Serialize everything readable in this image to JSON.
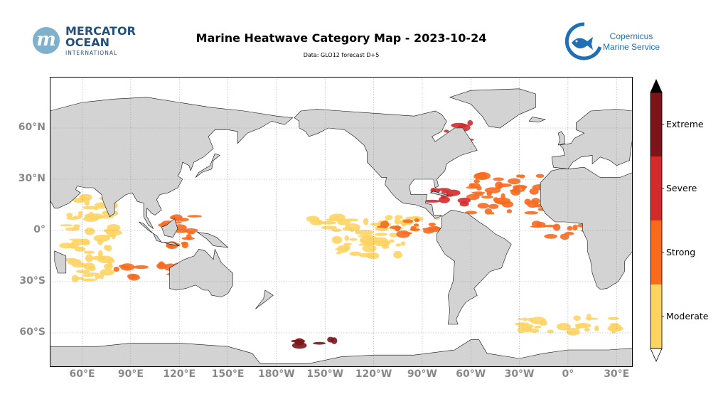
{
  "header": {
    "title": "Marine Heatwave Category Map - 2023-10-24",
    "subtitle": "Data: GLO12 forecast D+5"
  },
  "logos": {
    "left": {
      "line1": "MERCATOR",
      "line2": "OCEAN",
      "line3": "INTERNATIONAL",
      "mark": "m"
    },
    "right": {
      "line1": "Copernicus",
      "line2": "Marine Service",
      "icon": "fish-globe-icon"
    }
  },
  "map": {
    "projection": "plate-carree",
    "central_longitude": -150,
    "lon_range": [
      40,
      400
    ],
    "lat_range": [
      -80,
      90
    ],
    "gridlines": true,
    "lat_ticks": [
      {
        "lat": 60,
        "label": "60°N"
      },
      {
        "lat": 30,
        "label": "30°N"
      },
      {
        "lat": 0,
        "label": "0°"
      },
      {
        "lat": -30,
        "label": "30°S"
      },
      {
        "lat": -60,
        "label": "60°S"
      }
    ],
    "lon_ticks": [
      {
        "lon": 60,
        "label": "60°E"
      },
      {
        "lon": 90,
        "label": "90°E"
      },
      {
        "lon": 120,
        "label": "120°E"
      },
      {
        "lon": 150,
        "label": "150°E"
      },
      {
        "lon": 180,
        "label": "180°W"
      },
      {
        "lon": 210,
        "label": "150°W"
      },
      {
        "lon": 240,
        "label": "120°W"
      },
      {
        "lon": 270,
        "label": "90°W"
      },
      {
        "lon": 300,
        "label": "60°W"
      },
      {
        "lon": 330,
        "label": "30°W"
      },
      {
        "lon": 360,
        "label": "0°"
      },
      {
        "lon": 390,
        "label": "30°E"
      }
    ],
    "colors": {
      "ocean": "#ffffff",
      "land": "#d3d3d3",
      "grid": "#999999",
      "coast": "#111111"
    }
  },
  "legend": {
    "categories": [
      {
        "label": "Moderate",
        "color": "#fdd464"
      },
      {
        "label": "Strong",
        "color": "#f76a1f"
      },
      {
        "label": "Severe",
        "color": "#d22b2b"
      },
      {
        "label": "Extreme",
        "color": "#7b1519"
      }
    ],
    "extend": "both"
  },
  "chart_data": {
    "type": "heatmap",
    "title": "Marine Heatwave Category Map - 2023-10-24",
    "levels": [
      "Moderate",
      "Strong",
      "Severe",
      "Extreme"
    ],
    "regions": [
      {
        "lon": [
          200,
          300
        ],
        "lat": [
          0,
          8
        ],
        "level": "Moderate"
      },
      {
        "lon": [
          215,
          260
        ],
        "lat": [
          -15,
          0
        ],
        "level": "Moderate"
      },
      {
        "lon": [
          245,
          280
        ],
        "lat": [
          -3,
          7
        ],
        "level": "Strong"
      },
      {
        "lon": [
          300,
          345
        ],
        "lat": [
          10,
          32
        ],
        "level": "Strong"
      },
      {
        "lon": [
          275,
          300
        ],
        "lat": [
          15,
          25
        ],
        "level": "Severe"
      },
      {
        "lon": [
          280,
          300
        ],
        "lat": [
          53,
          63
        ],
        "level": "Severe"
      },
      {
        "lon": [
          190,
          225
        ],
        "lat": [
          -68,
          -64
        ],
        "level": "Extreme"
      },
      {
        "lon": [
          110,
          130
        ],
        "lat": [
          -10,
          10
        ],
        "level": "Strong"
      },
      {
        "lon": [
          50,
          80
        ],
        "lat": [
          -30,
          20
        ],
        "level": "Moderate"
      },
      {
        "lon": [
          80,
          140
        ],
        "lat": [
          -28,
          -20
        ],
        "level": "Strong"
      },
      {
        "lon": [
          330,
          390
        ],
        "lat": [
          -60,
          -50
        ],
        "level": "Moderate"
      },
      {
        "lon": [
          340,
          390
        ],
        "lat": [
          -4,
          4
        ],
        "level": "Strong"
      }
    ]
  }
}
